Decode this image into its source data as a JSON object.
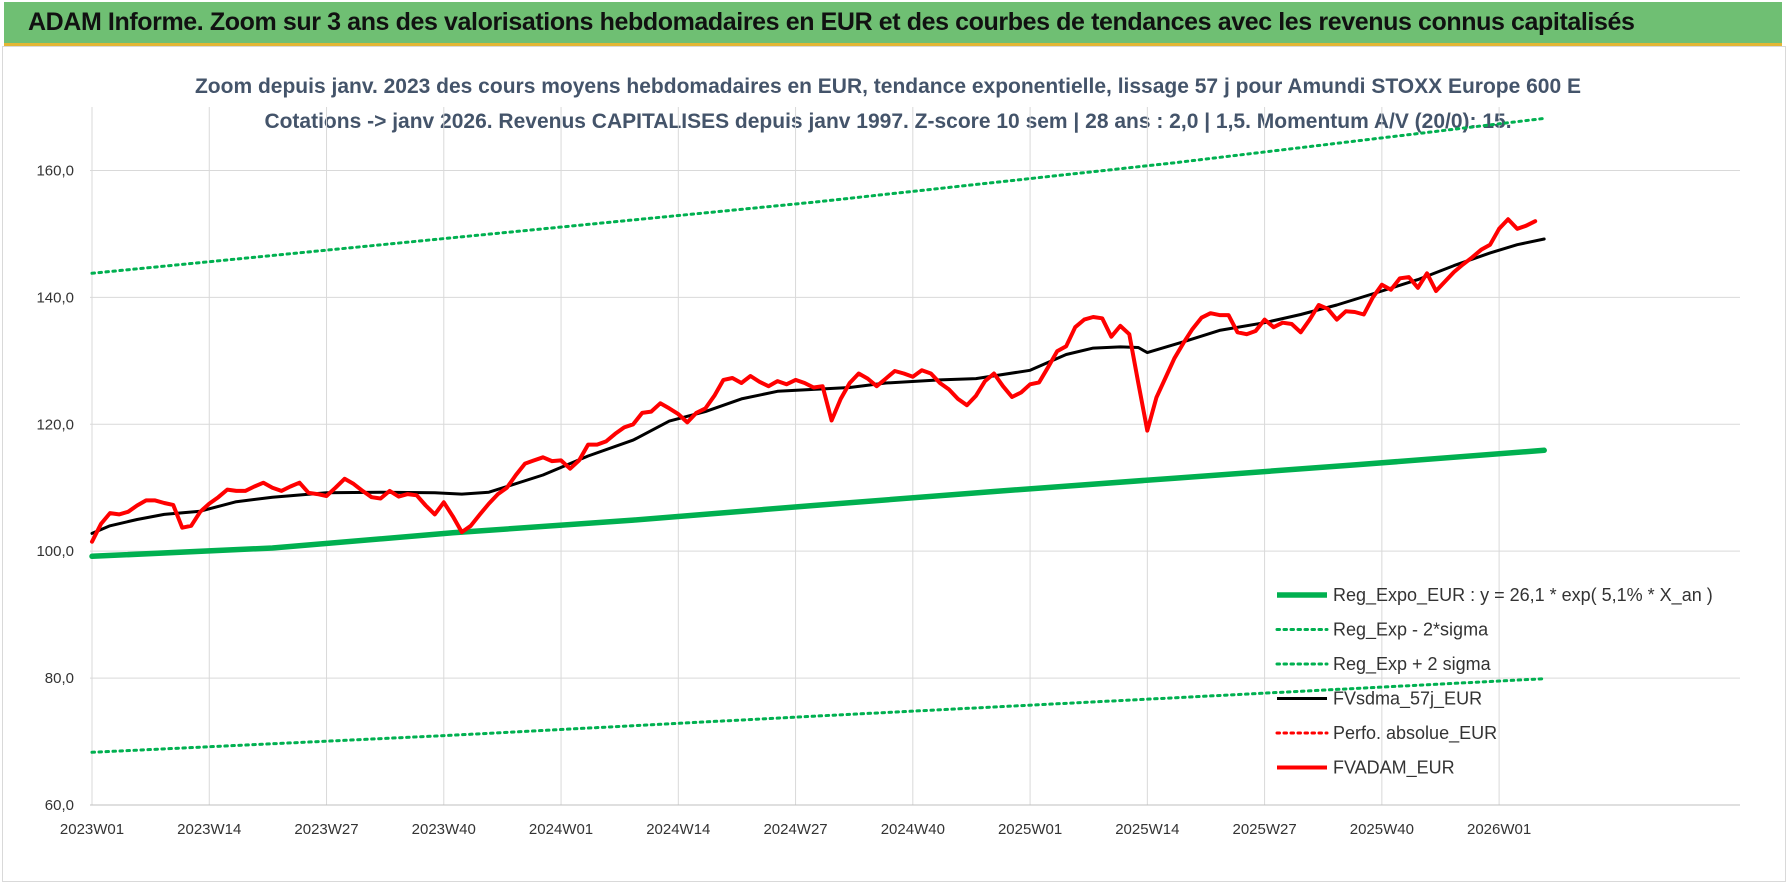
{
  "banner": {
    "title": "ADAM Informe. Zoom sur 3 ans des valorisations hebdomadaires en EUR et des courbes de tendances avec les revenus connus capitalisés"
  },
  "colors": {
    "banner_bg": "#6fbf73",
    "reg_green": "#00b050",
    "price_red": "#ff0000",
    "sma_black": "#000000",
    "title_text": "#44546a"
  },
  "chart_data": {
    "type": "line",
    "title_line1": "Zoom depuis janv. 2023 des cours moyens hebdomadaires en EUR, tendance exponentielle, lissage 57 j pour Amundi STOXX Europe 600 E",
    "title_line2": "Cotations -> janv 2026. Revenus CAPITALISES depuis janv 1997. Z-score 10 sem | 28 ans : 2,0 | 1,5. Momentum A/V (20/0): 15.",
    "xlabel": "",
    "ylabel": "",
    "ylim": [
      60,
      170
    ],
    "grid": true,
    "legend_position": "bottom-right",
    "y_ticks": [
      "160,0",
      "140,0",
      "120,0",
      "100,0",
      "80,0",
      "60,0"
    ],
    "y_tick_values": [
      160,
      140,
      120,
      100,
      80,
      60
    ],
    "x_ticks": [
      "2023W01",
      "2023W14",
      "2023W27",
      "2023W40",
      "2024W01",
      "2024W14",
      "2024W27",
      "2024W40",
      "2025W01",
      "2025W14",
      "2025W27",
      "2025W40",
      "2026W01"
    ],
    "x_tick_weeks": [
      0,
      13,
      26,
      39,
      52,
      65,
      78,
      91,
      104,
      117,
      130,
      143,
      156
    ],
    "x_range_weeks": [
      0,
      161
    ],
    "series": [
      {
        "name": "Reg_Expo_EUR : y = 26,1 * exp( 5,1% *  X_an )",
        "style": "solid-thick",
        "color": "#00b050",
        "points": [
          [
            0,
            99.2
          ],
          [
            20,
            100.5
          ],
          [
            40,
            102.9
          ],
          [
            60,
            104.9
          ],
          [
            80,
            107.2
          ],
          [
            100,
            109.4
          ],
          [
            120,
            111.5
          ],
          [
            140,
            113.6
          ],
          [
            161,
            115.9
          ]
        ]
      },
      {
        "name": "Reg_Exp - 2*sigma",
        "style": "dotted",
        "color": "#00b050",
        "points": [
          [
            0,
            68.3
          ],
          [
            40,
            71.0
          ],
          [
            80,
            74.0
          ],
          [
            120,
            76.9
          ],
          [
            161,
            79.9
          ]
        ]
      },
      {
        "name": "Reg_Exp + 2 sigma",
        "style": "dotted",
        "color": "#00b050",
        "points": [
          [
            0,
            143.8
          ],
          [
            40,
            149.4
          ],
          [
            80,
            155.0
          ],
          [
            120,
            161.2
          ],
          [
            161,
            168.2
          ]
        ]
      },
      {
        "name": "FVsdma_57j_EUR",
        "style": "solid",
        "color": "#000000",
        "points": [
          [
            0,
            102.8
          ],
          [
            2,
            104
          ],
          [
            5,
            105
          ],
          [
            8,
            105.8
          ],
          [
            12,
            106.3
          ],
          [
            16,
            107.8
          ],
          [
            20,
            108.5
          ],
          [
            26,
            109.2
          ],
          [
            32,
            109.3
          ],
          [
            38,
            109.2
          ],
          [
            41,
            109.0
          ],
          [
            44,
            109.3
          ],
          [
            46,
            110.2
          ],
          [
            50,
            112.0
          ],
          [
            55,
            115.0
          ],
          [
            60,
            117.5
          ],
          [
            64,
            120.5
          ],
          [
            68,
            122.0
          ],
          [
            72,
            124.0
          ],
          [
            76,
            125.2
          ],
          [
            80,
            125.5
          ],
          [
            84,
            125.8
          ],
          [
            88,
            126.5
          ],
          [
            94,
            127.0
          ],
          [
            98,
            127.2
          ],
          [
            104,
            128.5
          ],
          [
            108,
            131.0
          ],
          [
            111,
            132.0
          ],
          [
            114,
            132.2
          ],
          [
            116,
            132.1
          ],
          [
            117,
            131.3
          ],
          [
            121,
            133.0
          ],
          [
            125,
            134.8
          ],
          [
            130,
            136.0
          ],
          [
            134,
            137.3
          ],
          [
            138,
            138.8
          ],
          [
            143,
            141.0
          ],
          [
            147,
            142.8
          ],
          [
            151,
            145.0
          ],
          [
            155,
            147.0
          ],
          [
            158,
            148.3
          ],
          [
            161,
            149.2
          ]
        ]
      },
      {
        "name": "Perfo. absolue_EUR",
        "style": "dotted",
        "color": "#ff0000",
        "points": []
      },
      {
        "name": "FVADAM_EUR",
        "style": "solid-thick",
        "color": "#ff0000",
        "points": [
          [
            0,
            101.5
          ],
          [
            1,
            104.3
          ],
          [
            2,
            106.0
          ],
          [
            3,
            105.8
          ],
          [
            4,
            106.2
          ],
          [
            5,
            107.2
          ],
          [
            6,
            108.0
          ],
          [
            7,
            108.0
          ],
          [
            8,
            107.6
          ],
          [
            9,
            107.3
          ],
          [
            10,
            103.7
          ],
          [
            11,
            104.0
          ],
          [
            12,
            106.2
          ],
          [
            13,
            107.5
          ],
          [
            14,
            108.5
          ],
          [
            15,
            109.7
          ],
          [
            16,
            109.5
          ],
          [
            17,
            109.5
          ],
          [
            18,
            110.2
          ],
          [
            19,
            110.8
          ],
          [
            20,
            110.0
          ],
          [
            21,
            109.5
          ],
          [
            22,
            110.2
          ],
          [
            23,
            110.8
          ],
          [
            24,
            109.2
          ],
          [
            25,
            109.0
          ],
          [
            26,
            108.7
          ],
          [
            27,
            110.0
          ],
          [
            28,
            111.4
          ],
          [
            29,
            110.6
          ],
          [
            30,
            109.5
          ],
          [
            31,
            108.5
          ],
          [
            32,
            108.3
          ],
          [
            33,
            109.5
          ],
          [
            34,
            108.6
          ],
          [
            35,
            109.0
          ],
          [
            36,
            108.8
          ],
          [
            37,
            107.2
          ],
          [
            38,
            105.8
          ],
          [
            39,
            107.7
          ],
          [
            40,
            105.5
          ],
          [
            41,
            103.0
          ],
          [
            42,
            104.0
          ],
          [
            43,
            105.8
          ],
          [
            44,
            107.5
          ],
          [
            45,
            109.0
          ],
          [
            46,
            110.0
          ],
          [
            47,
            112.0
          ],
          [
            48,
            113.8
          ],
          [
            49,
            114.3
          ],
          [
            50,
            114.8
          ],
          [
            51,
            114.2
          ],
          [
            52,
            114.3
          ],
          [
            53,
            113.0
          ],
          [
            54,
            114.3
          ],
          [
            55,
            116.8
          ],
          [
            56,
            116.8
          ],
          [
            57,
            117.3
          ],
          [
            58,
            118.5
          ],
          [
            59,
            119.5
          ],
          [
            60,
            120.0
          ],
          [
            61,
            121.8
          ],
          [
            62,
            122.0
          ],
          [
            63,
            123.3
          ],
          [
            64,
            122.5
          ],
          [
            65,
            121.6
          ],
          [
            66,
            120.3
          ],
          [
            67,
            121.8
          ],
          [
            68,
            122.5
          ],
          [
            69,
            124.5
          ],
          [
            70,
            127.0
          ],
          [
            71,
            127.3
          ],
          [
            72,
            126.5
          ],
          [
            73,
            127.6
          ],
          [
            74,
            126.7
          ],
          [
            75,
            126.0
          ],
          [
            76,
            126.8
          ],
          [
            77,
            126.3
          ],
          [
            78,
            127.0
          ],
          [
            79,
            126.5
          ],
          [
            80,
            125.8
          ],
          [
            81,
            126.0
          ],
          [
            82,
            120.6
          ],
          [
            83,
            124.0
          ],
          [
            84,
            126.5
          ],
          [
            85,
            128.0
          ],
          [
            86,
            127.2
          ],
          [
            87,
            126.0
          ],
          [
            88,
            127.2
          ],
          [
            89,
            128.4
          ],
          [
            90,
            128.0
          ],
          [
            91,
            127.5
          ],
          [
            92,
            128.5
          ],
          [
            93,
            128.0
          ],
          [
            94,
            126.5
          ],
          [
            95,
            125.5
          ],
          [
            96,
            124.0
          ],
          [
            97,
            123.0
          ],
          [
            98,
            124.5
          ],
          [
            99,
            126.8
          ],
          [
            100,
            128.0
          ],
          [
            101,
            126.0
          ],
          [
            102,
            124.3
          ],
          [
            103,
            125.0
          ],
          [
            104,
            126.3
          ],
          [
            105,
            126.6
          ],
          [
            106,
            129.0
          ],
          [
            107,
            131.5
          ],
          [
            108,
            132.3
          ],
          [
            109,
            135.3
          ],
          [
            110,
            136.5
          ],
          [
            111,
            136.9
          ],
          [
            112,
            136.7
          ],
          [
            113,
            133.8
          ],
          [
            114,
            135.5
          ],
          [
            115,
            134.2
          ],
          [
            116,
            126.5
          ],
          [
            117,
            119.0
          ],
          [
            118,
            124.2
          ],
          [
            119,
            127.3
          ],
          [
            120,
            130.4
          ],
          [
            121,
            132.8
          ],
          [
            122,
            135.0
          ],
          [
            123,
            136.8
          ],
          [
            124,
            137.5
          ],
          [
            125,
            137.2
          ],
          [
            126,
            137.2
          ],
          [
            127,
            134.5
          ],
          [
            128,
            134.2
          ],
          [
            129,
            134.7
          ],
          [
            130,
            136.5
          ],
          [
            131,
            135.3
          ],
          [
            132,
            136.0
          ],
          [
            133,
            135.8
          ],
          [
            134,
            134.5
          ],
          [
            135,
            136.5
          ],
          [
            136,
            138.8
          ],
          [
            137,
            138.2
          ],
          [
            138,
            136.5
          ],
          [
            139,
            137.8
          ],
          [
            140,
            137.7
          ],
          [
            141,
            137.3
          ],
          [
            142,
            140.0
          ],
          [
            143,
            142.0
          ],
          [
            144,
            141.2
          ],
          [
            145,
            143.0
          ],
          [
            146,
            143.2
          ],
          [
            147,
            141.5
          ],
          [
            148,
            143.8
          ],
          [
            149,
            141.0
          ],
          [
            150,
            142.5
          ],
          [
            151,
            144.0
          ],
          [
            152,
            145.2
          ],
          [
            153,
            146.3
          ],
          [
            154,
            147.5
          ],
          [
            155,
            148.3
          ],
          [
            156,
            150.8
          ],
          [
            157,
            152.3
          ],
          [
            158,
            150.8
          ],
          [
            159,
            151.3
          ],
          [
            160,
            152.0
          ]
        ]
      }
    ]
  }
}
